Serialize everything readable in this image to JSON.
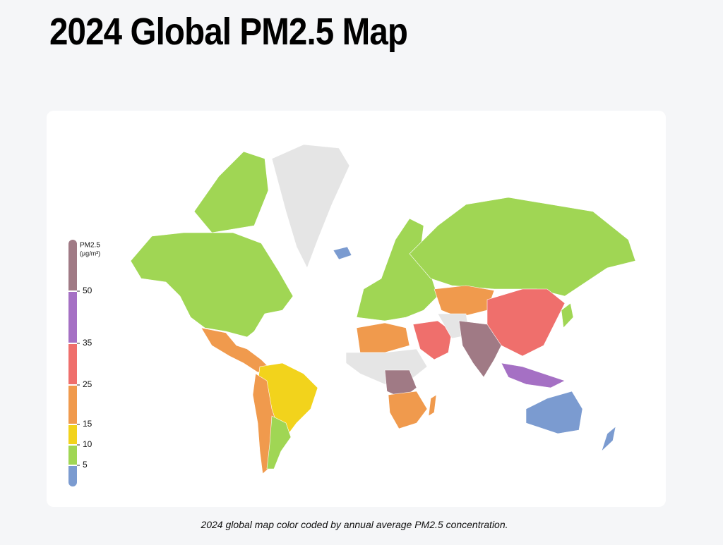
{
  "title": "2024 Global PM2.5 Map",
  "caption": "2024 global map color coded by annual average PM2.5 concentration.",
  "legend": {
    "title": "PM2.5",
    "unit": "(µg/m³)",
    "ticks": [
      5,
      10,
      15,
      25,
      35,
      50
    ],
    "colors": [
      "#7b9bd0",
      "#a0d654",
      "#f2d31c",
      "#f09a4d",
      "#ef6f6c",
      "#a570c4",
      "#a07a85"
    ]
  }
}
